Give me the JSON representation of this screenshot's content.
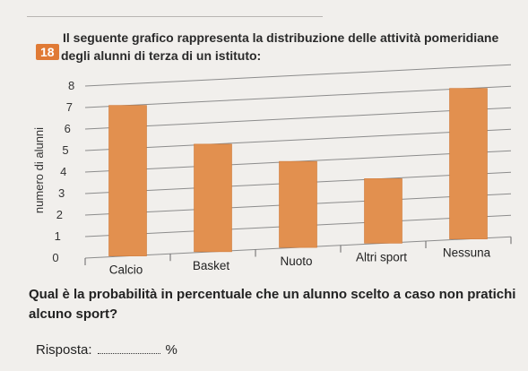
{
  "exercise": {
    "number": "18",
    "intro": "Il seguente grafico rappresenta la distribuzione delle attività pomeridiane degli alunni di terza di un istituto:"
  },
  "chart_data": {
    "type": "bar",
    "categories": [
      "Calcio",
      "Basket",
      "Nuoto",
      "Altri sport",
      "Nessuna"
    ],
    "values": [
      7,
      5,
      4,
      3,
      7
    ],
    "title": "",
    "xlabel": "",
    "ylabel": "numero di alunni",
    "ylim": [
      0,
      8
    ],
    "yticks": [
      "0",
      "1",
      "2",
      "3",
      "4",
      "5",
      "6",
      "7",
      "8"
    ],
    "bar_color": "#e2904f",
    "grid": true
  },
  "question": "Qual è la probabilità in percentuale che un alunno scelto a caso non pratichi alcuno sport?",
  "answer": {
    "label": "Risposta:",
    "unit": "%"
  }
}
